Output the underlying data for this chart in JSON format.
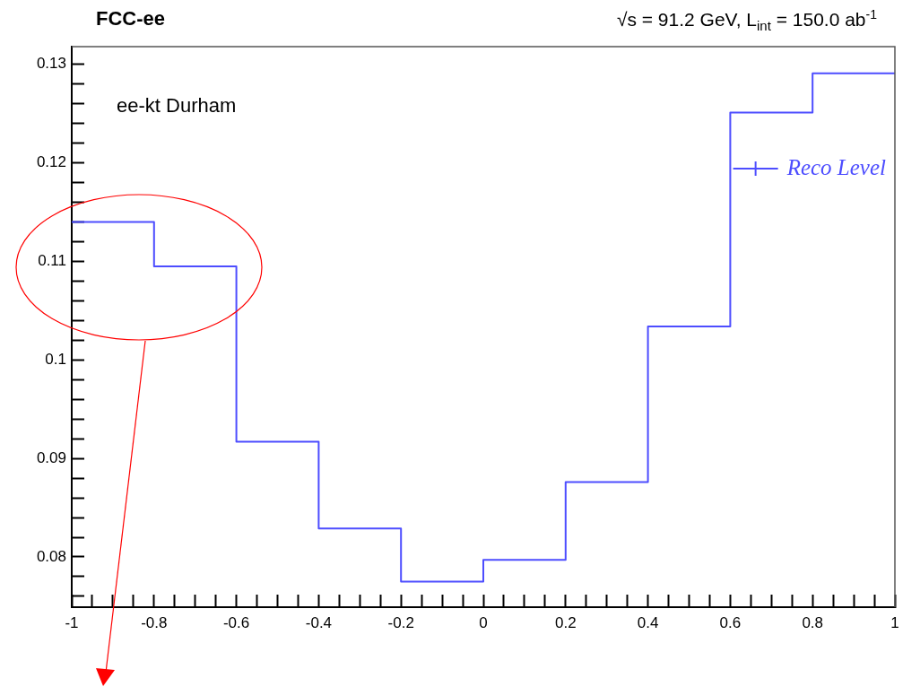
{
  "chart_data": {
    "type": "histogram",
    "title": "FCC-ee",
    "subtitle": "√s = 91.2 GeV, L$_{int}$ = 150.0 ab$^{-1}$",
    "annotations": [
      "ee-kt Durham"
    ],
    "bins": [
      -1,
      -0.8,
      -0.6,
      -0.4,
      -0.2,
      0,
      0.2,
      0.4,
      0.6,
      0.8,
      1
    ],
    "series": [
      {
        "name": "Reco Level",
        "color": "#4d4dff",
        "values": [
          0.114,
          0.1095,
          0.0917,
          0.0829,
          0.0775,
          0.0797,
          0.0876,
          0.1034,
          0.1251,
          0.1291
        ]
      }
    ],
    "xlim": [
      -1,
      1
    ],
    "xticks": [
      -1,
      {
        "value": -0.95,
        "label": null
      },
      {
        "value": -0.9,
        "label": null
      },
      {
        "value": -0.85,
        "label": null
      },
      -0.8,
      {
        "value": -0.75,
        "label": null
      },
      {
        "value": -0.7,
        "label": null
      },
      {
        "value": -0.65,
        "label": null
      },
      -0.6,
      {
        "value": -0.55,
        "label": null
      },
      {
        "value": -0.5,
        "label": null
      },
      {
        "value": -0.45,
        "label": null
      },
      -0.4,
      {
        "value": -0.35,
        "label": null
      },
      {
        "value": -0.3,
        "label": null
      },
      {
        "value": -0.25,
        "label": null
      },
      -0.2,
      {
        "value": -0.15,
        "label": null
      },
      {
        "value": -0.1,
        "label": null
      },
      {
        "value": -0.05,
        "label": null
      },
      0,
      {
        "value": 0.05,
        "label": null
      },
      {
        "value": 0.1,
        "label": null
      },
      {
        "value": 0.15,
        "label": null
      },
      0.2,
      {
        "value": 0.25,
        "label": null
      },
      {
        "value": 0.3,
        "label": null
      },
      {
        "value": 0.35,
        "label": null
      },
      0.4,
      {
        "value": 0.45,
        "label": null
      },
      {
        "value": 0.5,
        "label": null
      },
      {
        "value": 0.55,
        "label": null
      },
      0.6,
      {
        "value": 0.65,
        "label": null
      },
      {
        "value": 0.7,
        "label": null
      },
      {
        "value": 0.75,
        "label": null
      },
      0.8,
      {
        "value": 0.85,
        "label": null
      },
      {
        "value": 0.9,
        "label": null
      },
      {
        "value": 0.95,
        "label": null
      },
      1
    ],
    "ylim": [
      0.0749,
      0.1318
    ],
    "yticks": [
      {
        "value": 0.076,
        "label": null
      },
      {
        "value": 0.078,
        "label": null
      },
      0.08,
      {
        "value": 0.082,
        "label": null
      },
      {
        "value": 0.084,
        "label": null
      },
      {
        "value": 0.086,
        "label": null
      },
      {
        "value": 0.088,
        "label": null
      },
      0.09,
      {
        "value": 0.092,
        "label": null
      },
      {
        "value": 0.094,
        "label": null
      },
      {
        "value": 0.096,
        "label": null
      },
      {
        "value": 0.098,
        "label": null
      },
      0.1,
      {
        "value": 0.102,
        "label": null
      },
      {
        "value": 0.104,
        "label": null
      },
      {
        "value": 0.106,
        "label": null
      },
      {
        "value": 0.108,
        "label": null
      },
      0.11,
      {
        "value": 0.112,
        "label": null
      },
      {
        "value": 0.114,
        "label": null
      },
      {
        "value": 0.116,
        "label": null
      },
      {
        "value": 0.118,
        "label": null
      },
      0.12,
      {
        "value": 0.122,
        "label": null
      },
      {
        "value": 0.124,
        "label": null
      },
      {
        "value": 0.126,
        "label": null
      },
      {
        "value": 0.128,
        "label": null
      },
      0.13
    ],
    "grid": false,
    "legend": "top right"
  }
}
